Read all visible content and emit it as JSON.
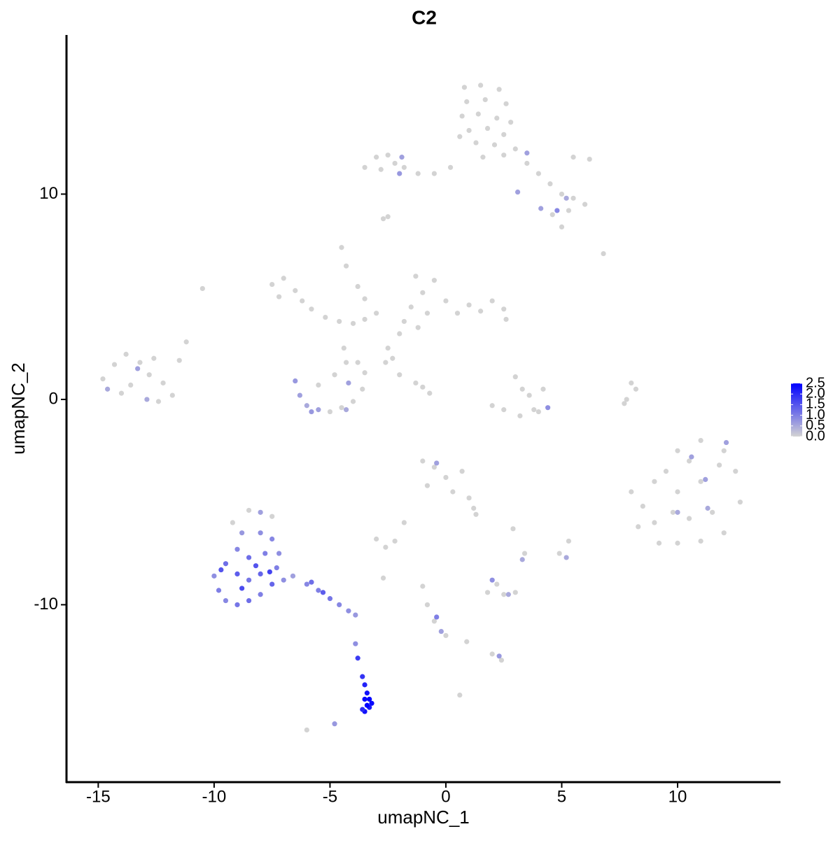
{
  "chart_data": {
    "type": "scatter",
    "title": "C2",
    "x_label": "umapNC_1",
    "y_label": "umapNC_2",
    "xlim": [
      -16.37,
      14.44
    ],
    "ylim": [
      -18.64,
      17.75
    ],
    "xticks": [
      -15,
      -10,
      -5,
      0,
      5,
      10
    ],
    "yticks": [
      -10,
      0,
      10
    ],
    "color_low": "#d3d3d3",
    "color_high": "#0000ff",
    "colorbar": {
      "lim": [
        0,
        2.5
      ],
      "ticks": [
        {
          "value": 0,
          "label": "0.0"
        },
        {
          "value": 0.5,
          "label": "0.5"
        },
        {
          "value": 1,
          "label": "1.0"
        },
        {
          "value": 1.5,
          "label": "1.5"
        },
        {
          "value": 2,
          "label": "2.0"
        },
        {
          "value": 2.5,
          "label": "2.5"
        }
      ]
    },
    "x": [
      0.8,
      1.5,
      2.3,
      0.9,
      1.7,
      2.6,
      0.7,
      1.4,
      2.2,
      2.8,
      1.0,
      1.8,
      2.5,
      1.3,
      2.1,
      1.6,
      2.5,
      0.6,
      3.0,
      3.5,
      4.0,
      4.5,
      5.0,
      5.5,
      6.0,
      5.3,
      4.6,
      5.5,
      6.2,
      -3.0,
      -2.5,
      -2.2,
      -2.8,
      -1.8,
      -1.2,
      -0.5,
      0.2,
      -3.5,
      -2.7,
      -2.5,
      5.0,
      6.8,
      4.1,
      4.8,
      3.5,
      5.2,
      -2.0,
      -1.9,
      3.1,
      -7.5,
      -7.0,
      -6.5,
      -7.2,
      -6.2,
      -5.8,
      -5.2,
      -4.6,
      -4.0,
      -3.5,
      -4.5,
      -4.3,
      -3.8,
      -3.5,
      -3.0,
      -10.5,
      -1.3,
      -1.0,
      -0.5,
      -1.5,
      -0.8,
      0.0,
      0.5,
      1.0,
      1.5,
      2.0,
      2.5,
      2.6,
      -1.2,
      -2.0,
      -2.5,
      -2.3,
      -1.8,
      -4.4,
      -4.3,
      -2.0,
      -1.3,
      -1.0,
      -0.7,
      -2.6,
      -14.8,
      -14.3,
      -13.8,
      -13.2,
      -12.6,
      -12.8,
      -13.6,
      -14.0,
      -12.2,
      -11.8,
      -12.4,
      -11.5,
      -11.2,
      -14.6,
      -13.3,
      -12.9,
      -5.0,
      -4.5,
      -4.0,
      -3.6,
      -3.5,
      -3.8,
      -5.5,
      -4.8,
      -6.5,
      -6.3,
      -6.0,
      -5.5,
      -4.2,
      -5.8,
      -4.3,
      3.0,
      3.3,
      3.6,
      3.8,
      3.2,
      2.5,
      2.0,
      4.2,
      4.0,
      4.4,
      8.0,
      8.2,
      7.8,
      7.7,
      8.0,
      8.5,
      9.0,
      8.3,
      9.2,
      10.0,
      11.0,
      12.0,
      12.7,
      12.5,
      12.0,
      11.0,
      10.0,
      9.5,
      9.0,
      10.0,
      11.0,
      11.5,
      10.5,
      9.8,
      11.8,
      10.5,
      12.1,
      11.2,
      10.0,
      11.3,
      10.6,
      -1.0,
      -0.5,
      0.0,
      0.7,
      -0.8,
      0.3,
      1.0,
      1.2,
      1.3,
      -0.4,
      -3.0,
      -2.6,
      -2.2,
      -1.8,
      1.8,
      2.5,
      3.0,
      2.2,
      -1.0,
      -0.8,
      -0.5,
      0.0,
      0.9,
      2.0,
      2.4,
      0.6,
      2.9,
      3.4,
      4.9,
      5.3,
      -6.0,
      -2.7,
      2.0,
      2.7,
      -0.2,
      -0.4,
      2.3,
      5.2,
      3.3,
      -4.8,
      -9.2,
      -8.5,
      -7.5,
      -10.0,
      -9.8,
      -9.5,
      -9.0,
      -8.5,
      -8.0,
      -7.5,
      -9.5,
      -9.0,
      -8.5,
      -8.0,
      -7.3,
      -9.0,
      -8.5,
      -7.8,
      -8.8,
      -8.0,
      -7.5,
      -8.0,
      -7.2,
      -7.0,
      -6.6,
      -6.0,
      -5.5,
      -5.0,
      -4.6,
      -4.2,
      -3.9,
      -5.8,
      -5.3,
      -9.7,
      -8.8,
      -8.2,
      -7.6,
      -3.9,
      -3.8,
      -3.6,
      -3.5,
      -3.4,
      -3.3,
      -3.2,
      -3.3,
      -3.5,
      -3.6,
      -3.4,
      -3.5
    ],
    "y": [
      15.2,
      15.3,
      15.1,
      14.5,
      14.6,
      14.4,
      13.8,
      13.9,
      13.7,
      13.5,
      13.1,
      13.2,
      12.9,
      12.5,
      12.4,
      11.8,
      11.9,
      12.8,
      12.2,
      11.5,
      11.0,
      10.5,
      10.0,
      9.8,
      9.5,
      9.2,
      9.0,
      11.8,
      11.7,
      11.8,
      11.9,
      11.5,
      11.2,
      11.3,
      11.0,
      11.0,
      11.3,
      11.3,
      8.8,
      8.9,
      8.4,
      7.1,
      9.3,
      9.2,
      12.0,
      9.8,
      11.0,
      11.8,
      10.1,
      5.6,
      5.9,
      5.3,
      5.0,
      4.8,
      4.4,
      4.0,
      3.8,
      3.7,
      3.9,
      7.4,
      6.5,
      5.5,
      4.9,
      4.2,
      5.4,
      6.0,
      5.2,
      5.8,
      4.5,
      4.2,
      4.8,
      4.2,
      4.6,
      4.3,
      4.8,
      4.4,
      3.9,
      3.5,
      3.2,
      2.5,
      2.0,
      3.8,
      2.5,
      1.8,
      1.2,
      0.8,
      0.6,
      0.3,
      1.8,
      1.0,
      1.7,
      2.2,
      1.8,
      2.0,
      1.2,
      0.7,
      0.3,
      0.8,
      0.2,
      -0.1,
      1.9,
      2.8,
      0.5,
      1.5,
      0.0,
      -0.6,
      -0.4,
      -0.1,
      0.5,
      1.3,
      1.8,
      0.7,
      1.2,
      0.9,
      0.2,
      -0.3,
      -0.5,
      0.8,
      -0.6,
      -0.5,
      1.1,
      0.5,
      0.2,
      -0.5,
      -0.8,
      -0.5,
      -0.3,
      0.5,
      -0.6,
      -0.4,
      0.8,
      0.5,
      0.0,
      -0.2,
      -4.5,
      -5.2,
      -6.0,
      -6.2,
      -7.0,
      -7.0,
      -6.9,
      -6.5,
      -5.0,
      -3.5,
      -2.5,
      -2.0,
      -2.5,
      -3.5,
      -4.0,
      -4.5,
      -4.0,
      -5.5,
      -5.8,
      -5.5,
      -3.2,
      -3.0,
      -2.1,
      -3.9,
      -5.5,
      -5.3,
      -2.8,
      -3.0,
      -3.3,
      -3.8,
      -3.5,
      -4.2,
      -4.5,
      -4.8,
      -5.3,
      -5.6,
      -3.1,
      -6.8,
      -7.2,
      -6.9,
      -6.0,
      -9.4,
      -9.5,
      -9.4,
      -9.0,
      -9.1,
      -10.0,
      -10.8,
      -11.5,
      -11.8,
      -12.4,
      -12.7,
      -14.4,
      -6.3,
      -7.5,
      -7.5,
      -6.9,
      -16.1,
      -8.7,
      -8.8,
      -9.5,
      -11.3,
      -10.6,
      -12.5,
      -7.7,
      -7.8,
      -15.8,
      -6.0,
      -5.4,
      -5.7,
      -8.6,
      -9.3,
      -9.8,
      -10.0,
      -9.8,
      -9.5,
      -9.0,
      -8.0,
      -8.5,
      -8.8,
      -8.5,
      -8.2,
      -7.3,
      -7.7,
      -7.5,
      -6.5,
      -6.5,
      -6.8,
      -5.5,
      -7.5,
      -8.8,
      -8.6,
      -9.0,
      -9.3,
      -9.7,
      -10.0,
      -10.3,
      -10.5,
      -8.9,
      -9.4,
      -8.3,
      -9.2,
      -8.1,
      -8.4,
      -11.9,
      -12.6,
      -13.5,
      -13.9,
      -14.3,
      -14.6,
      -14.8,
      -15.0,
      -15.2,
      -15.1,
      -14.9,
      -14.6
    ],
    "values": [
      0,
      0,
      0,
      0,
      0,
      0,
      0,
      0,
      0,
      0,
      0,
      0,
      0,
      0,
      0,
      0,
      0,
      0,
      0,
      0,
      0,
      0,
      0,
      0,
      0,
      0,
      0,
      0,
      0,
      0,
      0,
      0,
      0,
      0,
      0,
      0,
      0,
      0,
      0,
      0,
      0,
      0,
      0.6,
      0.9,
      0.6,
      0.5,
      0.7,
      0.6,
      0.6,
      0,
      0,
      0,
      0,
      0,
      0,
      0,
      0,
      0,
      0,
      0,
      0,
      0,
      0,
      0,
      0,
      0,
      0,
      0,
      0,
      0,
      0,
      0,
      0,
      0,
      0,
      0,
      0,
      0,
      0,
      0,
      0,
      0,
      0,
      0,
      0,
      0,
      0,
      0,
      0,
      0,
      0,
      0,
      0,
      0,
      0,
      0,
      0,
      0,
      0,
      0,
      0,
      0,
      0.5,
      0.6,
      0.5,
      0,
      0,
      0,
      0,
      0,
      0,
      0,
      0,
      0.7,
      0.6,
      0.5,
      0.6,
      0.6,
      0.7,
      0.5,
      0,
      0,
      0,
      0,
      0,
      0,
      0,
      0,
      0,
      0.8,
      0,
      0,
      0,
      0,
      0,
      0,
      0,
      0,
      0,
      0,
      0,
      0,
      0,
      0,
      0,
      0,
      0,
      0,
      0,
      0,
      0,
      0,
      0,
      0,
      0,
      0,
      0.6,
      0.6,
      0.5,
      0.5,
      0.6,
      0,
      0,
      0,
      0,
      0,
      0,
      0,
      0,
      0,
      0.6,
      0,
      0,
      0,
      0,
      0,
      0,
      0,
      0,
      0,
      0,
      0,
      0,
      0,
      0,
      0,
      0,
      0,
      0,
      0,
      0,
      0,
      0,
      0.8,
      0.5,
      0.6,
      1.0,
      0.7,
      0.5,
      0.5,
      0.7,
      0,
      0,
      0,
      0.8,
      1.0,
      0.9,
      1.1,
      1.2,
      1.0,
      1.3,
      1.2,
      1.4,
      1.1,
      1.3,
      1.0,
      0.9,
      1.2,
      1.0,
      0.7,
      0.8,
      0.9,
      0.6,
      0.8,
      0.8,
      0.6,
      0.9,
      1.0,
      1.1,
      0.9,
      0.8,
      0.7,
      1.2,
      1.4,
      1.5,
      1.6,
      1.5,
      1.7,
      0.8,
      1.8,
      1.9,
      2.1,
      2.3,
      2.5,
      2.4,
      2.2,
      2.3,
      2.0,
      2.5,
      2.4
    ]
  }
}
